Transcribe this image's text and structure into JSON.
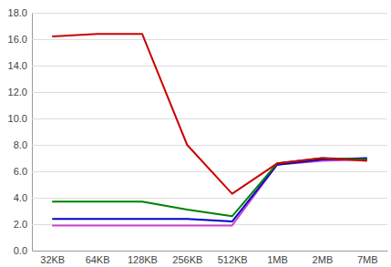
{
  "chart_data": {
    "type": "line",
    "categories": [
      "32KB",
      "64KB",
      "128KB",
      "256KB",
      "512KB",
      "1MB",
      "2MB",
      "7MB"
    ],
    "series": [
      {
        "color": "#cc44cc",
        "values": [
          1.9,
          1.9,
          1.9,
          1.9,
          1.9,
          6.5,
          6.8,
          6.9
        ]
      },
      {
        "color": "#0000cc",
        "values": [
          2.4,
          2.4,
          2.4,
          2.4,
          2.2,
          6.5,
          6.9,
          7.0
        ]
      },
      {
        "color": "#008000",
        "values": [
          3.7,
          3.7,
          3.7,
          3.1,
          2.6,
          6.6,
          7.0,
          6.9
        ]
      },
      {
        "color": "#cc0000",
        "values": [
          16.2,
          16.4,
          16.4,
          8.0,
          4.3,
          6.6,
          7.0,
          6.8
        ]
      }
    ],
    "ylim": [
      0,
      18
    ],
    "yticks": [
      {
        "value": 0,
        "label": "0.0"
      },
      {
        "value": 2,
        "label": "2.0"
      },
      {
        "value": 4,
        "label": "4.0"
      },
      {
        "value": 6,
        "label": "6.0"
      },
      {
        "value": 8,
        "label": "8.0"
      },
      {
        "value": 10,
        "label": "10.0"
      },
      {
        "value": 12,
        "label": "12.0"
      },
      {
        "value": 14,
        "label": "14.0"
      },
      {
        "value": 16,
        "label": "16.0"
      },
      {
        "value": 18,
        "label": "18.0"
      }
    ],
    "grid": true
  }
}
